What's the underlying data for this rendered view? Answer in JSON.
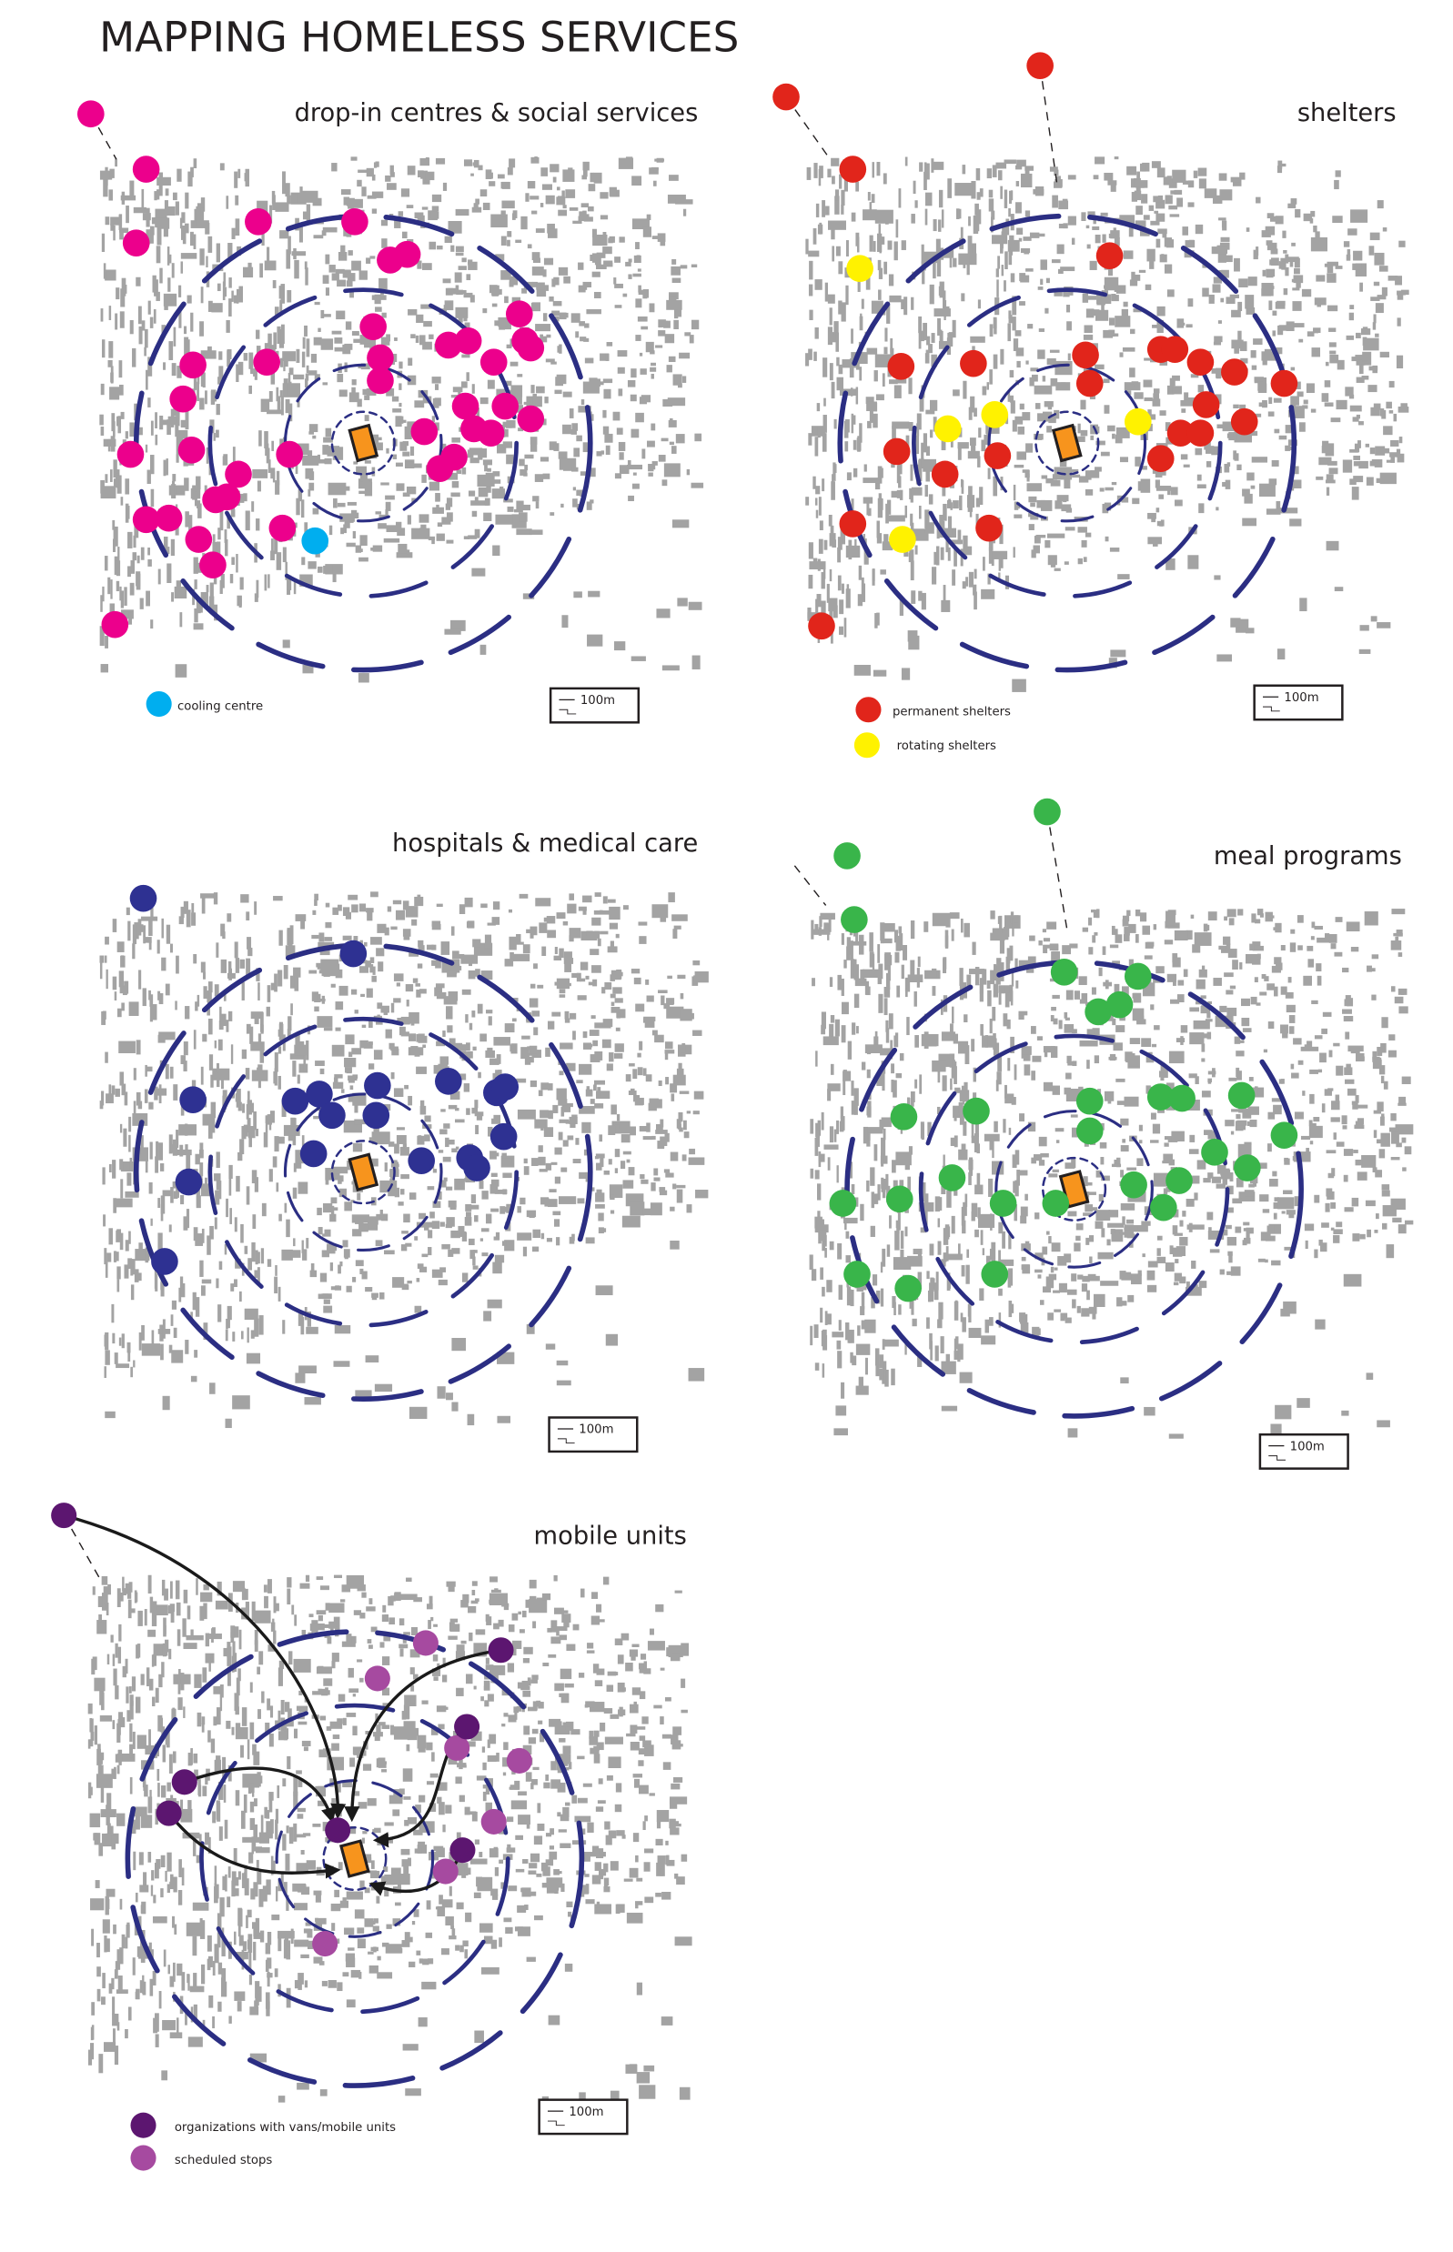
{
  "title": "MAPPING HOMELESS SERVICES",
  "scale_label": "100m",
  "colors": {
    "buildings": "#a3a3a3",
    "rings": "#2b2e83",
    "site": "#f7941d",
    "arrows": "#1a1a1a"
  },
  "panels": [
    {
      "title": "drop-in centres & social services",
      "marker_color": "#ec008c",
      "legend": [
        {
          "label": "cooling centre",
          "color": "#00aeef"
        }
      ]
    },
    {
      "title": "shelters",
      "marker_color": "#e1251b",
      "legend": [
        {
          "label": "permanent shelters",
          "color": "#e1251b"
        },
        {
          "label": "rotating shelters",
          "color": "#fff200"
        }
      ]
    },
    {
      "title": "hospitals & medical care",
      "marker_color": "#2e3192",
      "legend": []
    },
    {
      "title": "meal programs",
      "marker_color": "#39b54a",
      "legend": []
    },
    {
      "title": "mobile units",
      "marker_color": "#5c1670",
      "legend": [
        {
          "label": "organizations with vans/mobile units",
          "color": "#5c1670"
        },
        {
          "label": "scheduled stops",
          "color": "#a64aa0"
        }
      ]
    }
  ]
}
